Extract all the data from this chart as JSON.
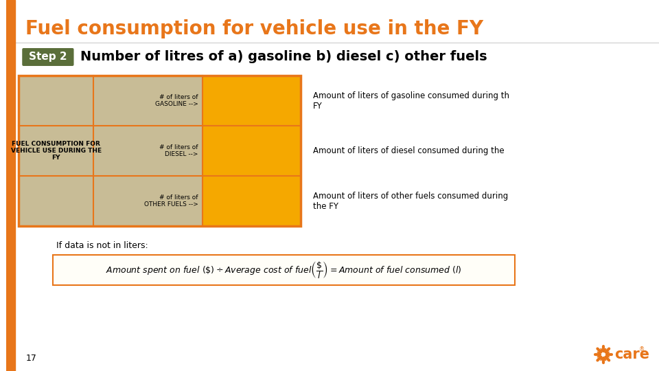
{
  "title": "Fuel consumption for vehicle use in the FY",
  "title_color": "#E8761A",
  "title_fontsize": 20,
  "step_label": "Step 2",
  "step_bg": "#5a6e3a",
  "step_text_color": "#ffffff",
  "step_fontsize": 11,
  "step_desc": "Number of litres of a) gasoline b) diesel c) other fuels",
  "step_desc_fontsize": 14,
  "orange_bar_color": "#E8761A",
  "table_left_bg": "#c8bc96",
  "table_right_bg": "#F5A800",
  "table_border_color": "#E8761A",
  "table_label_left": "FUEL CONSUMPTION FOR\nVEHICLE USE DURING THE\nFY",
  "table_rows": [
    {
      "left": "# of liters of\nGASOLINE -->",
      "right_annotation": "Amount of liters of gasoline consumed during th\nFY"
    },
    {
      "left": "# of liters of\nDIESEL -->",
      "right_annotation": "Amount of liters of diesel consumed during the"
    },
    {
      "left": "# of liters of\nOTHER FUELS -->",
      "right_annotation": "Amount of liters of other fuels consumed during\nthe FY"
    }
  ],
  "if_data_label": "If data is not in liters:",
  "formula_border_color": "#E8761A",
  "page_number": "17",
  "sidebar_color": "#E8761A",
  "background_color": "#ffffff"
}
